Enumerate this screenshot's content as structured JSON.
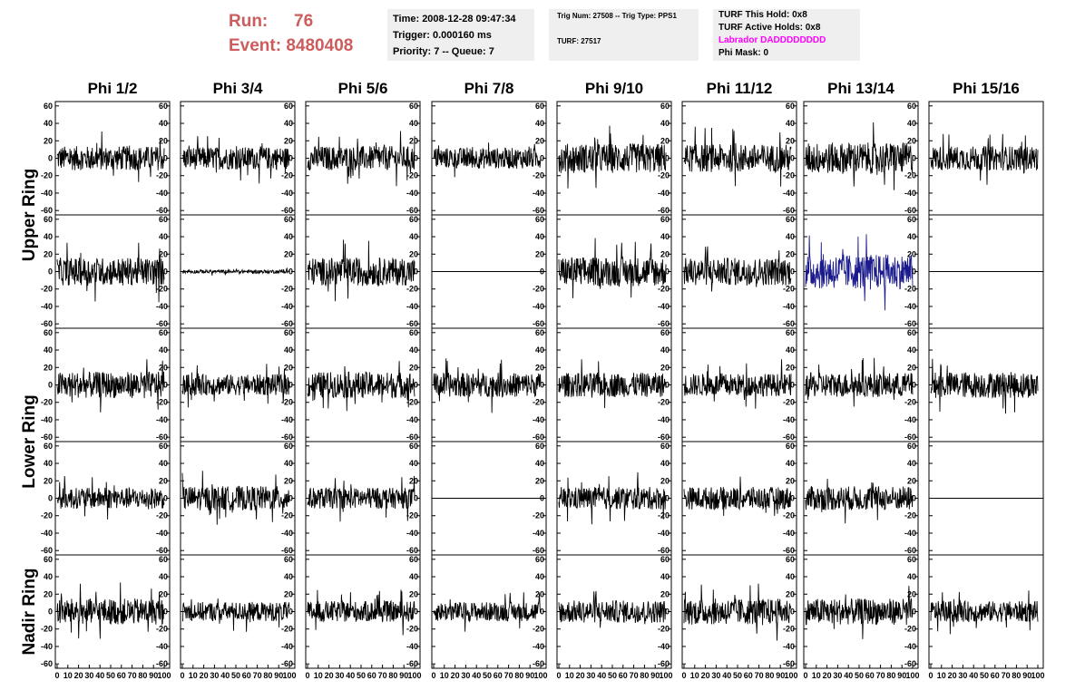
{
  "header": {
    "run_label": "Run:",
    "run_value": "76",
    "event_label": "Event:",
    "event_value": "8480408",
    "time": "Time: 2008-12-28 09:47:34",
    "trigger": "Trigger: 0.000160 ms",
    "priority": "Priority: 7 -- Queue: 7",
    "trig_num": "Trig Num: 27508 -- Trig Type: PPS1",
    "turf": "TURF: 27517",
    "turf_hold": "TURF This Hold: 0x8",
    "turf_active": "TURF Active Holds: 0x8",
    "labrador": "Labrador DADDDDDDDD",
    "phi_mask": "Phi Mask: 0"
  },
  "colors": {
    "run_text": "#cd5c5c",
    "labrador": "#ff00ff",
    "trace": "#000000",
    "highlight_trace": "#1a1a8c",
    "info_bg": "#efefef"
  },
  "chart_data": {
    "type": "line",
    "columns": [
      "Phi 1/2",
      "Phi 3/4",
      "Phi 5/6",
      "Phi 7/8",
      "Phi 9/10",
      "Phi 11/12",
      "Phi 13/14",
      "Phi 15/16"
    ],
    "rows": [
      "Upper Ring",
      "Lower Ring",
      "Nadir Ring"
    ],
    "ylim": [
      -65,
      65
    ],
    "xlim": [
      0,
      100
    ],
    "y_ticks": [
      60,
      40,
      20,
      0,
      -20,
      -40,
      -60
    ],
    "x_tick_labels": [
      "0",
      "10",
      "20",
      "30",
      "40",
      "50",
      "60",
      "70",
      "80",
      "90",
      "100"
    ],
    "panel_rows": [
      {
        "ring": "Upper Ring",
        "panels": [
          {
            "amp": 14,
            "flat": false
          },
          {
            "amp": 13,
            "flat": false
          },
          {
            "amp": 14,
            "flat": false
          },
          {
            "amp": 12,
            "flat": false
          },
          {
            "amp": 17,
            "flat": false
          },
          {
            "amp": 16,
            "flat": false
          },
          {
            "amp": 18,
            "flat": false
          },
          {
            "amp": 14,
            "flat": false,
            "no_right_axis": true
          }
        ]
      },
      {
        "ring": "Upper Ring",
        "panels": [
          {
            "amp": 16,
            "flat": false
          },
          {
            "amp": 2,
            "flat": false
          },
          {
            "amp": 16,
            "flat": false
          },
          {
            "amp": 0,
            "flat": true
          },
          {
            "amp": 17,
            "flat": false
          },
          {
            "amp": 16,
            "flat": false
          },
          {
            "amp": 20,
            "flat": false,
            "highlight": true
          },
          {
            "amp": 0,
            "flat": true,
            "no_right_axis": true
          }
        ]
      },
      {
        "ring": "Lower Ring",
        "panels": [
          {
            "amp": 15,
            "flat": false
          },
          {
            "amp": 12,
            "flat": false
          },
          {
            "amp": 15,
            "flat": false
          },
          {
            "amp": 14,
            "flat": false
          },
          {
            "amp": 14,
            "flat": false
          },
          {
            "amp": 13,
            "flat": false
          },
          {
            "amp": 14,
            "flat": false
          },
          {
            "amp": 15,
            "flat": false,
            "no_right_axis": true
          }
        ]
      },
      {
        "ring": "Lower Ring",
        "panels": [
          {
            "amp": 12,
            "flat": false
          },
          {
            "amp": 14,
            "flat": false
          },
          {
            "amp": 12,
            "flat": false
          },
          {
            "amp": 0,
            "flat": true
          },
          {
            "amp": 13,
            "flat": false
          },
          {
            "amp": 13,
            "flat": false
          },
          {
            "amp": 14,
            "flat": false
          },
          {
            "amp": 0,
            "flat": true,
            "no_right_axis": true
          }
        ]
      },
      {
        "ring": "Nadir Ring",
        "panels": [
          {
            "amp": 15,
            "flat": false
          },
          {
            "amp": 11,
            "flat": false
          },
          {
            "amp": 12,
            "flat": false
          },
          {
            "amp": 11,
            "flat": false
          },
          {
            "amp": 13,
            "flat": false
          },
          {
            "amp": 15,
            "flat": false
          },
          {
            "amp": 15,
            "flat": false
          },
          {
            "amp": 12,
            "flat": false,
            "no_right_axis": true
          }
        ]
      }
    ]
  }
}
